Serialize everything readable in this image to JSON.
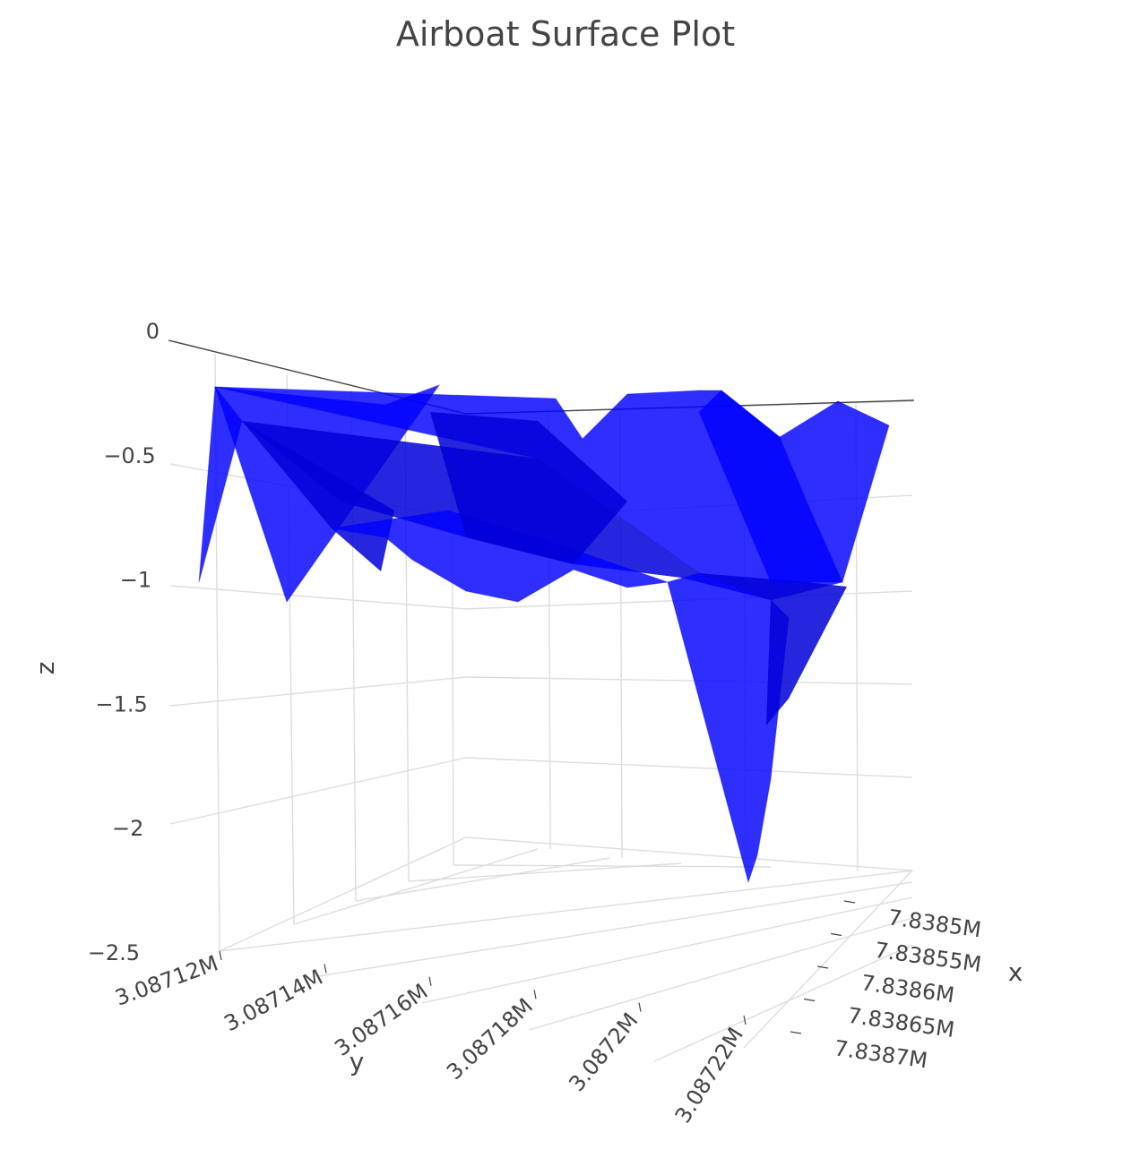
{
  "chart_data": {
    "type": "surface",
    "title": "Airboat Surface Plot",
    "colors": {
      "surface": "#0000ff",
      "grid": "#dddddd",
      "text": "#444444"
    },
    "axes": {
      "x": {
        "title": "x",
        "ticks": [
          {
            "value": 7838500,
            "label": "7.8385M"
          },
          {
            "value": 7838550,
            "label": "7.83855M"
          },
          {
            "value": 7838600,
            "label": "7.8386M"
          },
          {
            "value": 7838650,
            "label": "7.83865M"
          },
          {
            "value": 7838700,
            "label": "7.8387M"
          }
        ]
      },
      "y": {
        "title": "y",
        "ticks": [
          {
            "value": 3087120,
            "label": "3.08712M"
          },
          {
            "value": 3087140,
            "label": "3.08714M"
          },
          {
            "value": 3087160,
            "label": "3.08716M"
          },
          {
            "value": 3087180,
            "label": "3.08718M"
          },
          {
            "value": 3087200,
            "label": "3.0872M"
          },
          {
            "value": 3087220,
            "label": "3.08722M"
          }
        ]
      },
      "z": {
        "title": "z",
        "range": [
          -2.5,
          0
        ],
        "ticks": [
          {
            "value": 0,
            "label": "0"
          },
          {
            "value": -0.5,
            "label": "−0.5"
          },
          {
            "value": -1,
            "label": "−1"
          },
          {
            "value": -1.5,
            "label": "−1.5"
          },
          {
            "value": -2,
            "label": "−2"
          },
          {
            "value": -2.5,
            "label": "−2.5"
          }
        ]
      }
    },
    "grid": true
  }
}
